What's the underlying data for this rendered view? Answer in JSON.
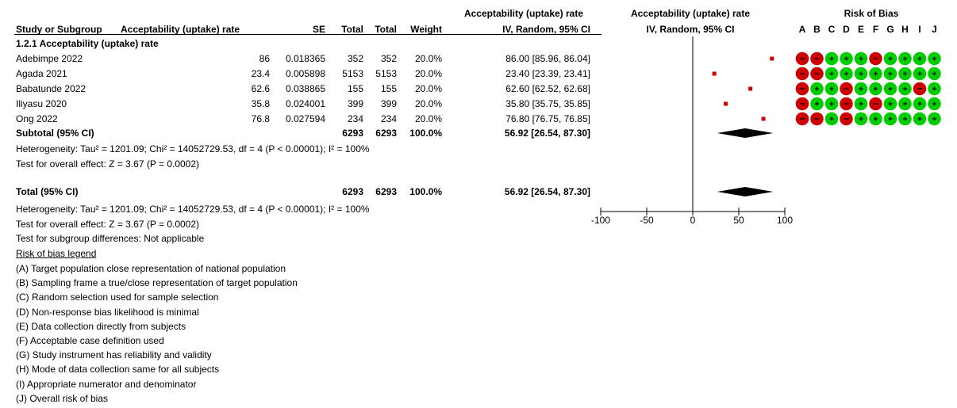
{
  "headers": {
    "study": "Study or Subgroup",
    "estimate": "Acceptability (uptake) rate",
    "se": "SE",
    "total1": "Total",
    "total2": "Total",
    "weight": "Weight",
    "ci_top": "Acceptability (uptake) rate",
    "ci_sub": "IV, Random, 95% CI",
    "plot_top": "Acceptability (uptake) rate",
    "plot_sub": "IV, Random, 95% CI",
    "rob_title": "Risk of Bias",
    "rob_letters": [
      "A",
      "B",
      "C",
      "D",
      "E",
      "F",
      "G",
      "H",
      "I",
      "J"
    ]
  },
  "subgroup_title": "1.2.1 Acceptability (uptake) rate",
  "studies": [
    {
      "name": "Adebimpe 2022",
      "estimate": "86",
      "se": "0.018365",
      "total1": "352",
      "total2": "352",
      "weight": "20.0%",
      "ci": "86.00 [85.96, 86.04]",
      "rob": [
        "-",
        "-",
        "+",
        "+",
        "+",
        "-",
        "+",
        "+",
        "+",
        "+"
      ]
    },
    {
      "name": "Agada 2021",
      "estimate": "23.4",
      "se": "0.005898",
      "total1": "5153",
      "total2": "5153",
      "weight": "20.0%",
      "ci": "23.40 [23.39, 23.41]",
      "rob": [
        "-",
        "-",
        "+",
        "+",
        "+",
        "+",
        "+",
        "+",
        "+",
        "+"
      ]
    },
    {
      "name": "Babatunde 2022",
      "estimate": "62.6",
      "se": "0.038865",
      "total1": "155",
      "total2": "155",
      "weight": "20.0%",
      "ci": "62.60 [62.52, 62.68]",
      "rob": [
        "-",
        "+",
        "+",
        "-",
        "+",
        "+",
        "+",
        "+",
        "-",
        "+"
      ]
    },
    {
      "name": "Iliyasu 2020",
      "estimate": "35.8",
      "se": "0.024001",
      "total1": "399",
      "total2": "399",
      "weight": "20.0%",
      "ci": "35.80 [35.75, 35.85]",
      "rob": [
        "-",
        "+",
        "+",
        "-",
        "+",
        "-",
        "+",
        "+",
        "+",
        "+"
      ]
    },
    {
      "name": "Ong 2022",
      "estimate": "76.8",
      "se": "0.027594",
      "total1": "234",
      "total2": "234",
      "weight": "20.0%",
      "ci": "76.80 [76.75, 76.85]",
      "rob": [
        "-",
        "-",
        "+",
        "-",
        "+",
        "+",
        "+",
        "+",
        "+",
        "+"
      ]
    }
  ],
  "subtotal": {
    "label": "Subtotal (95% CI)",
    "total1": "6293",
    "total2": "6293",
    "weight": "100.0%",
    "ci": "56.92 [26.54, 87.30]"
  },
  "heterogeneity1": "Heterogeneity: Tau² = 1201.09; Chi² = 14052729.53, df = 4 (P < 0.00001); I² = 100%",
  "overall_effect1": "Test for overall effect: Z = 3.67 (P = 0.0002)",
  "total": {
    "label": "Total (95% CI)",
    "total1": "6293",
    "total2": "6293",
    "weight": "100.0%",
    "ci": "56.92 [26.54, 87.30]"
  },
  "heterogeneity2": "Heterogeneity: Tau² = 1201.09; Chi² = 14052729.53, df = 4 (P < 0.00001); I² = 100%",
  "overall_effect2": "Test for overall effect: Z = 3.67 (P = 0.0002)",
  "subgroup_diff": "Test for subgroup differences: Not applicable",
  "legend_title": "Risk of bias legend",
  "legend": [
    "(A) Target population close representation of national population",
    "(B) Sampling frame a true/close representation of target population",
    "(C) Random selection used for sample selection",
    "(D) Non-response bias likelihood is minimal",
    "(E) Data collection directly from subjects",
    "(F) Acceptable case definition used",
    "(G) Study instrument has reliability and validity",
    "(H) Mode of data collection same for all subjects",
    "(I) Appropriate numerator and denominator",
    "(J) Overall risk of bias"
  ],
  "colors": {
    "marker": "#cc0000",
    "diamond": "#000000",
    "rob_low": "#00cc00",
    "rob_high": "#cc0000"
  },
  "chart_data": {
    "type": "scatter",
    "x_range": [
      -100,
      100
    ],
    "ticks": [
      -100,
      -50,
      0,
      50,
      100
    ],
    "tick_labels": [
      "-100",
      "-50",
      "0",
      "50",
      "100"
    ],
    "points": [
      {
        "study": "Adebimpe 2022",
        "est": 86.0,
        "lo": 85.96,
        "hi": 86.04
      },
      {
        "study": "Agada 2021",
        "est": 23.4,
        "lo": 23.39,
        "hi": 23.41
      },
      {
        "study": "Babatunde 2022",
        "est": 62.6,
        "lo": 62.52,
        "hi": 62.68
      },
      {
        "study": "Iliyasu 2020",
        "est": 35.8,
        "lo": 35.75,
        "hi": 35.85
      },
      {
        "study": "Ong 2022",
        "est": 76.8,
        "lo": 76.75,
        "hi": 76.85
      }
    ],
    "pooled": [
      {
        "label": "Subtotal (95% CI)",
        "est": 56.92,
        "lo": 26.54,
        "hi": 87.3
      },
      {
        "label": "Total (95% CI)",
        "est": 56.92,
        "lo": 26.54,
        "hi": 87.3
      }
    ]
  }
}
